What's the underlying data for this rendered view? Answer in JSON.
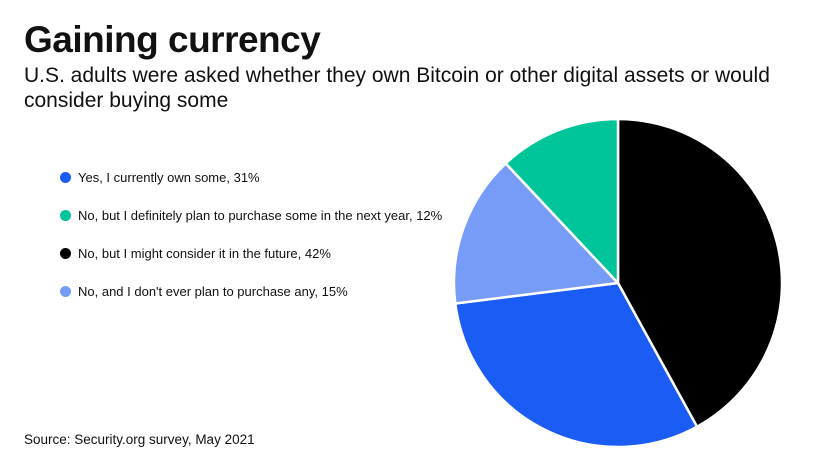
{
  "title": "Gaining currency",
  "subtitle": "U.S. adults were asked whether they own Bitcoin or other digital assets or would consider buying some",
  "source": "Source: Security.org survey, May 2021",
  "chart_data": {
    "type": "pie",
    "start_angle_deg": 0,
    "direction": "clockwise",
    "legend_placement": "left",
    "slices": [
      {
        "label": "No, but I might consider it in the future, 42%",
        "value": 42,
        "color": "#000000"
      },
      {
        "label": "Yes, I currently own some, 31%",
        "value": 31,
        "color": "#1b5cf5"
      },
      {
        "label": "No, and I don't ever plan to purchase any, 15%",
        "value": 15,
        "color": "#779cf7"
      },
      {
        "label": "No, but I definitely plan to purchase some in the next year, 12%",
        "value": 12,
        "color": "#00c49a"
      }
    ],
    "legend": [
      {
        "label": "Yes, I currently own some, 31%",
        "color": "#1b5cf5"
      },
      {
        "label": "No, but I definitely plan to purchase some in the next year, 12%",
        "color": "#00c49a"
      },
      {
        "label": "No, but I might consider it in the future, 42%",
        "color": "#000000"
      },
      {
        "label": "No, and I don't ever plan to purchase any, 15%",
        "color": "#779cf7"
      }
    ]
  }
}
